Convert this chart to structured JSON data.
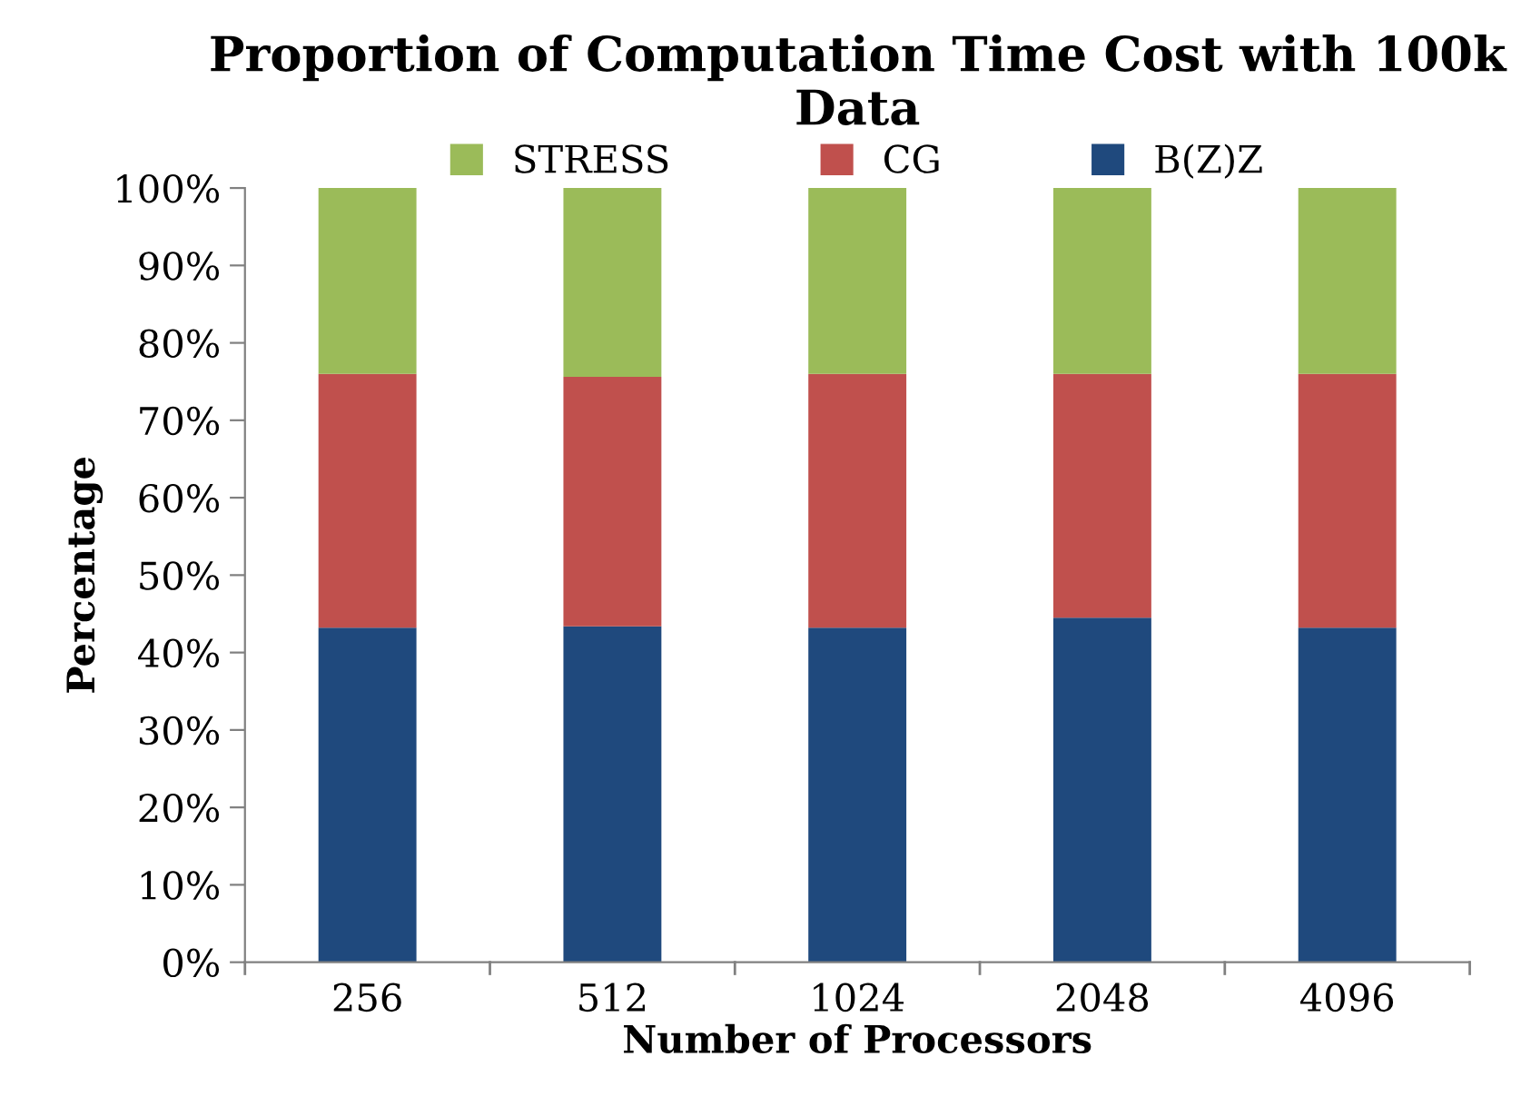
{
  "chart_data": {
    "type": "bar",
    "title": "Proportion of Computation Time Cost with 100k Data",
    "xlabel": "Number of Processors",
    "ylabel": "Percentage",
    "categories": [
      "256",
      "512",
      "1024",
      "2048",
      "4096"
    ],
    "stacked": true,
    "series": [
      {
        "name": "B(Z)Z",
        "color": "#1f497d",
        "values": [
          43.2,
          43.4,
          43.2,
          44.5,
          43.2
        ]
      },
      {
        "name": "CG",
        "color": "#c0504d",
        "values": [
          32.8,
          32.2,
          32.8,
          31.5,
          32.8
        ]
      },
      {
        "name": "STRESS",
        "color": "#9bbb59",
        "values": [
          24.0,
          24.4,
          24.0,
          24.0,
          24.0
        ]
      }
    ],
    "ylim": [
      0,
      100
    ],
    "yticks": [
      {
        "value": 0,
        "label": "0%"
      },
      {
        "value": 10,
        "label": "10%"
      },
      {
        "value": 20,
        "label": "20%"
      },
      {
        "value": 30,
        "label": "30%"
      },
      {
        "value": 40,
        "label": "40%"
      },
      {
        "value": 50,
        "label": "50%"
      },
      {
        "value": 60,
        "label": "60%"
      },
      {
        "value": 70,
        "label": "70%"
      },
      {
        "value": 80,
        "label": "80%"
      },
      {
        "value": 90,
        "label": "90%"
      },
      {
        "value": 100,
        "label": "100%"
      }
    ],
    "grid": false,
    "legend": "top"
  }
}
